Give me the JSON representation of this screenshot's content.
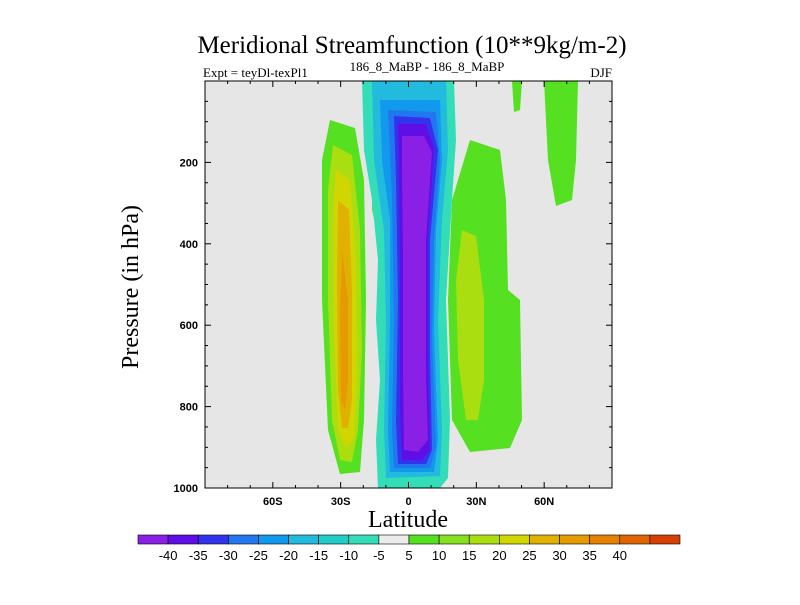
{
  "chart_data": {
    "type": "contour",
    "title": "Meridional Streamfunction (10**9kg/m-2)",
    "subtitle_left": "Expt = teyDl-texPl1",
    "subtitle_center": "186_8_MaBP - 186_8_MaBP",
    "subtitle_right": "DJF",
    "xlabel": "Latitude",
    "ylabel": "Pressure (in hPa)",
    "xlim": [
      -90,
      90
    ],
    "ylim": [
      1000,
      0
    ],
    "xticks": [
      {
        "value": -60,
        "label": "60S"
      },
      {
        "value": -30,
        "label": "30S"
      },
      {
        "value": 0,
        "label": "0"
      },
      {
        "value": 30,
        "label": "30N"
      },
      {
        "value": 60,
        "label": "60N"
      }
    ],
    "yticks": [
      {
        "value": 200,
        "label": "200"
      },
      {
        "value": 400,
        "label": "400"
      },
      {
        "value": 600,
        "label": "600"
      },
      {
        "value": 800,
        "label": "800"
      },
      {
        "value": 1000,
        "label": "1000"
      }
    ],
    "background_color": "#e6e6e6",
    "colorbar": {
      "colors": [
        "#8a1fe6",
        "#5f0fe6",
        "#3333ee",
        "#2277ee",
        "#1199ee",
        "#22bbdd",
        "#22ccc8",
        "#33ddb8",
        "#ececec",
        "#55e022",
        "#88e022",
        "#aade11",
        "#d0d700",
        "#e0b100",
        "#e59a00",
        "#e58000",
        "#e06400",
        "#d63f00"
      ],
      "labels": [
        "-40",
        "-35",
        "-30",
        "-25",
        "-20",
        "-15",
        "-10",
        "-5",
        "5",
        "10",
        "15",
        "20",
        "25",
        "30",
        "35",
        "40"
      ]
    },
    "features": [
      {
        "name": "tropical-negative-cell",
        "center": [
          5,
          560
        ],
        "peak_value": -40
      },
      {
        "name": "southern-positive-cell",
        "center": [
          -30,
          620
        ],
        "peak_value": 30
      },
      {
        "name": "northern-positive-cell",
        "center": [
          28,
          550
        ],
        "peak_value": 15
      }
    ]
  }
}
